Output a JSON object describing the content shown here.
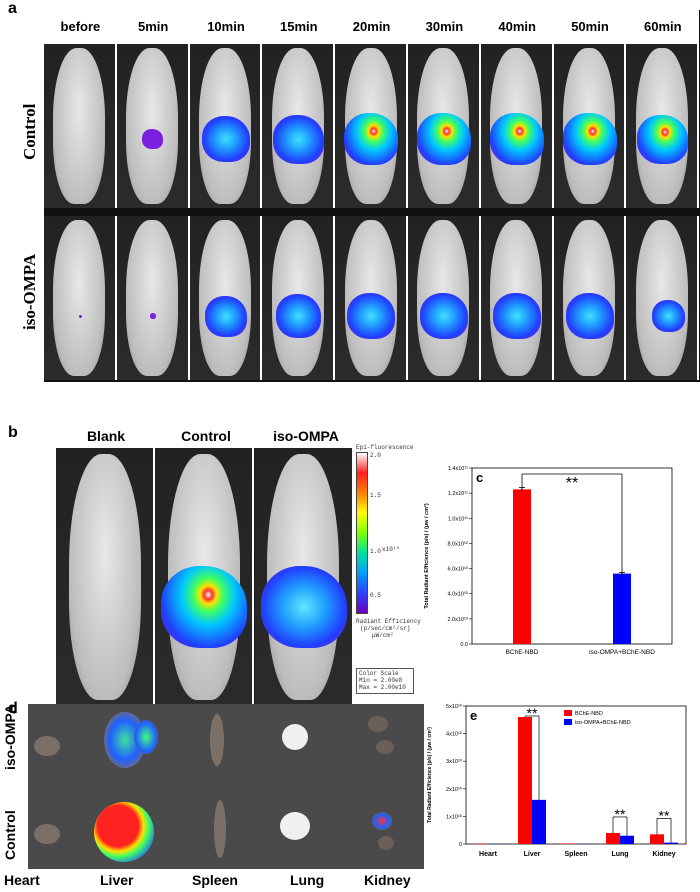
{
  "panel_a": {
    "label": "a",
    "timepoints": [
      "before",
      "5min",
      "10min",
      "15min",
      "20min",
      "30min",
      "40min",
      "50min",
      "60min"
    ],
    "row_labels": [
      "Control",
      "iso-OMPA"
    ]
  },
  "panel_b": {
    "label": "b",
    "columns": [
      "Blank",
      "Control",
      "iso-OMPA"
    ],
    "colorbar": {
      "title": "Epi-fluorescence",
      "ticks": [
        "2.0",
        "1.5",
        "1.0",
        "0.5"
      ],
      "exponent": "x10¹⁰",
      "unit_lines": [
        "Radiant Efficiency",
        "(p/sec/cm²/sr)",
        "μW/cm²"
      ],
      "scale_lines": [
        "Color Scale",
        "Min = 2.00e8",
        "Max = 2.00e10"
      ]
    }
  },
  "panel_c": {
    "label": "c",
    "significance": "**",
    "chart_data": {
      "type": "bar",
      "categories": [
        "BChE-NBD",
        "iso-OMPA+BChE-NBD"
      ],
      "values": [
        123000000000.0,
        56000000000.0
      ],
      "errors": [
        1500000000.0,
        1000000000.0
      ],
      "colors": [
        "#ff0000",
        "#0000ff"
      ],
      "ylabel": "Total Radiant Efficience (p/s) / (μw / cm²)",
      "ylim": [
        0,
        140000000000.0
      ],
      "yticks": [
        "0.0",
        "2.0x10¹⁰",
        "4.0x10¹⁰",
        "6.0x10¹⁰",
        "8.0x10¹⁰",
        "1.0x10¹¹",
        "1.2x10¹¹",
        "1.4x10¹¹"
      ]
    }
  },
  "panel_d": {
    "label": "d",
    "row_labels": [
      "iso-OMPA",
      "Control"
    ],
    "organs": [
      "Heart",
      "Liver",
      "Spleen",
      "Lung",
      "Kidney"
    ]
  },
  "panel_e": {
    "label": "e",
    "significance": "**",
    "chart_data": {
      "type": "bar",
      "categories": [
        "Heart",
        "Liver",
        "Spleen",
        "Lung",
        "Kidney"
      ],
      "series": [
        {
          "name": "BChE-NBD",
          "values": [
            200000000.0,
            46000000000.0,
            200000000.0,
            4000000000.0,
            3500000000.0
          ],
          "color": "#ff0000"
        },
        {
          "name": "iso-OMPA+BChE-NBD",
          "values": [
            100000000.0,
            16000000000.0,
            100000000.0,
            3000000000.0,
            500000000.0
          ],
          "color": "#0000ff"
        }
      ],
      "ylabel": "Total Radiant Efficience (p/s) / (μw / cm²)",
      "ylim": [
        0,
        50000000000.0
      ],
      "yticks": [
        "0",
        "1x10¹⁰",
        "2x10¹⁰",
        "3x10¹⁰",
        "4x10¹⁰",
        "5x10¹⁰"
      ]
    }
  }
}
